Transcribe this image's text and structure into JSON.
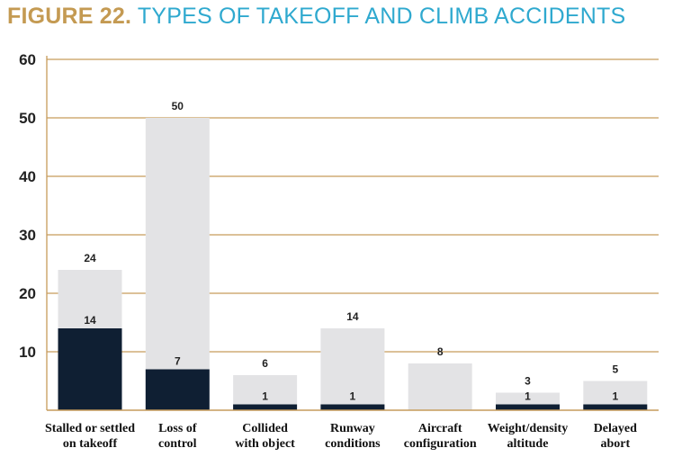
{
  "title": {
    "figure": "FIGURE 22.",
    "text": "TYPES OF TAKEOFF AND CLIMB ACCIDENTS"
  },
  "colors": {
    "figure_title": "#c49a52",
    "title_text": "#2fa9cf",
    "gridline": "#c69c5b",
    "total_bar": "#e3e3e5",
    "fatal_bar": "#0f1f33"
  },
  "chart_data": {
    "type": "bar",
    "categories": [
      [
        "Stalled or settled",
        "on takeoff"
      ],
      [
        "Loss of",
        "control"
      ],
      [
        "Collided",
        "with object"
      ],
      [
        "Runway",
        "conditions"
      ],
      [
        "Aircraft",
        "configuration"
      ],
      [
        "Weight/density",
        "altitude"
      ],
      [
        "Delayed",
        "abort"
      ]
    ],
    "series": [
      {
        "values": [
          24,
          50,
          6,
          14,
          8,
          3,
          5
        ]
      },
      {
        "values": [
          14,
          7,
          1,
          1,
          null,
          1,
          1
        ]
      }
    ],
    "yticks": [
      10,
      20,
      30,
      40,
      50,
      60
    ],
    "ylim": [
      0,
      60
    ],
    "grid": true,
    "legend": "none"
  }
}
